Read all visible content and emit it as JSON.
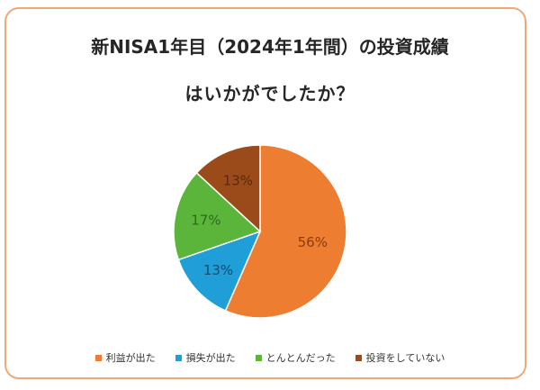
{
  "chart_data": {
    "type": "pie",
    "title_lines": [
      "新NISA1年目（2024年1年間）の投資成績",
      "はいかがでしたか？"
    ],
    "categories": [
      "利益が出た",
      "損失が出た",
      "とんとんだった",
      "投資をしていない"
    ],
    "values": [
      56,
      13,
      17,
      13
    ],
    "data_labels": [
      "56%",
      "13%",
      "17%",
      "13%"
    ],
    "colors": [
      "#ED7D31",
      "#1F9ED8",
      "#5BB53B",
      "#9B4A1A"
    ],
    "start_angle": "12 o'clock",
    "direction": "clockwise",
    "legend_position": "bottom"
  },
  "colors": {
    "border": "#f0a878",
    "title_text": "#262626",
    "slice_separator": "#ffffff",
    "label_text": "#555555"
  }
}
